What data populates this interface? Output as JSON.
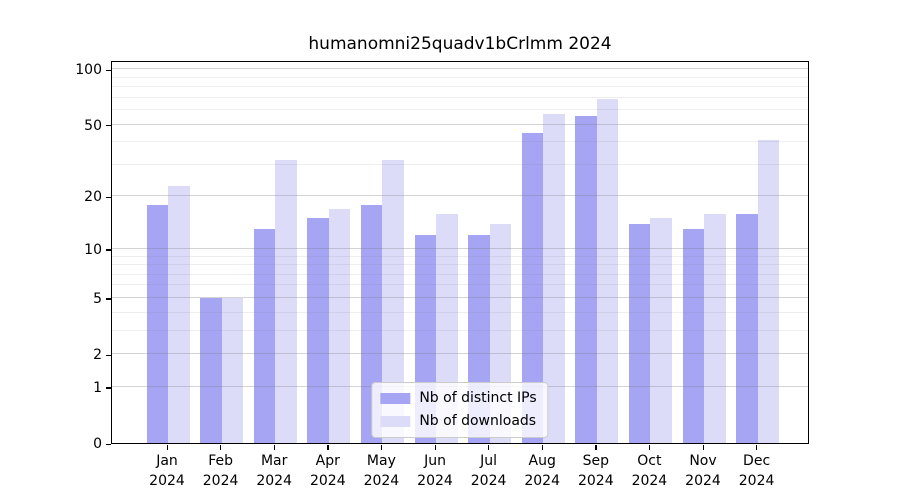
{
  "figure": {
    "background": "#ffffff"
  },
  "chart_data": {
    "type": "bar",
    "title": "humanomni25quadv1bCrlmm 2024",
    "categories": [
      "Jan 2024",
      "Feb 2024",
      "Mar 2024",
      "Apr 2024",
      "May 2024",
      "Jun 2024",
      "Jul 2024",
      "Aug 2024",
      "Sep 2024",
      "Oct 2024",
      "Nov 2024",
      "Dec 2024"
    ],
    "series": [
      {
        "name": "Nb of distinct IPs",
        "color": "#a5a5f4",
        "values": [
          18,
          5,
          13,
          15,
          18,
          12,
          12,
          45,
          56,
          14,
          13,
          16
        ]
      },
      {
        "name": "Nb of downloads",
        "color": "#dcdcf8",
        "values": [
          23,
          5,
          32,
          17,
          32,
          16,
          14,
          57,
          69,
          15,
          16,
          41
        ]
      }
    ],
    "xlabel": "",
    "ylabel": "",
    "y_scale": "log10(1+y)",
    "ylim": [
      0,
      110
    ],
    "y_ticks": [
      0,
      1,
      2,
      5,
      10,
      20,
      50,
      100
    ],
    "y_minor_ticks": [
      3,
      4,
      6,
      7,
      8,
      9,
      30,
      40,
      60,
      70,
      80,
      90
    ],
    "grid": "horizontal",
    "legend_position": "lower center"
  },
  "legend": {
    "items": [
      {
        "label": "Nb of distinct IPs"
      },
      {
        "label": "Nb of downloads"
      }
    ]
  }
}
